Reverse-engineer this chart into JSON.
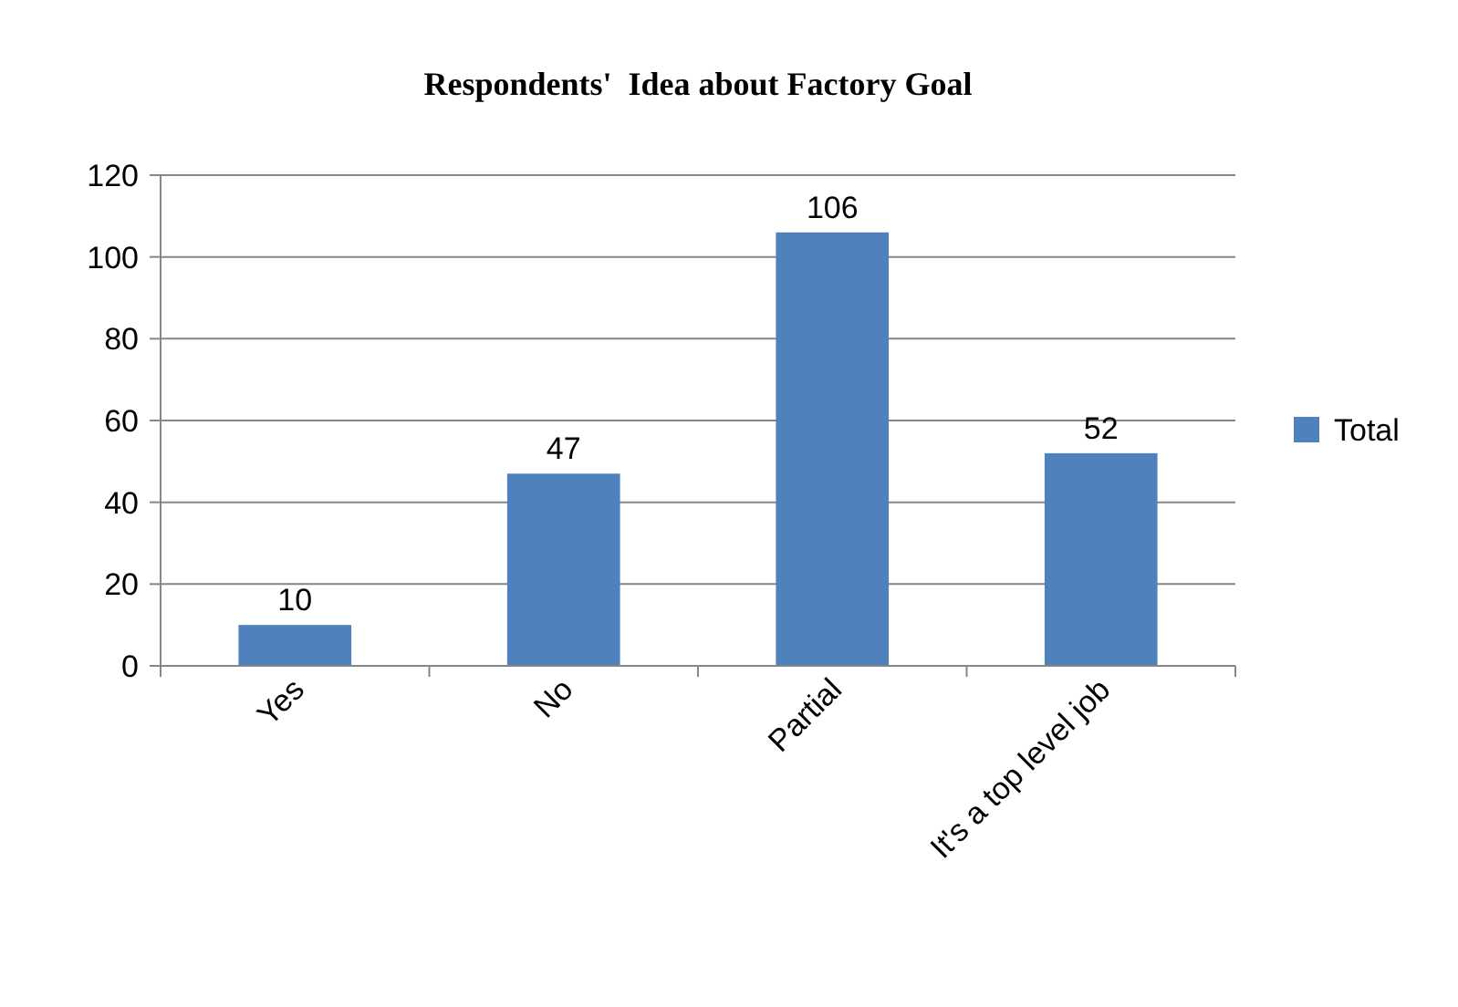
{
  "chart_data": {
    "type": "bar",
    "title": "Respondents'  Idea about Factory Goal",
    "categories": [
      "Yes",
      "No",
      "Partial",
      "It's a top level job"
    ],
    "series": [
      {
        "name": "Total",
        "color": "#4f81bd",
        "values": [
          10,
          47,
          106,
          52
        ]
      }
    ],
    "ylim": [
      0,
      120
    ],
    "yticks": [
      0,
      20,
      40,
      60,
      80,
      100,
      120
    ],
    "grid": "y",
    "legend": "right",
    "data_labels": true
  }
}
